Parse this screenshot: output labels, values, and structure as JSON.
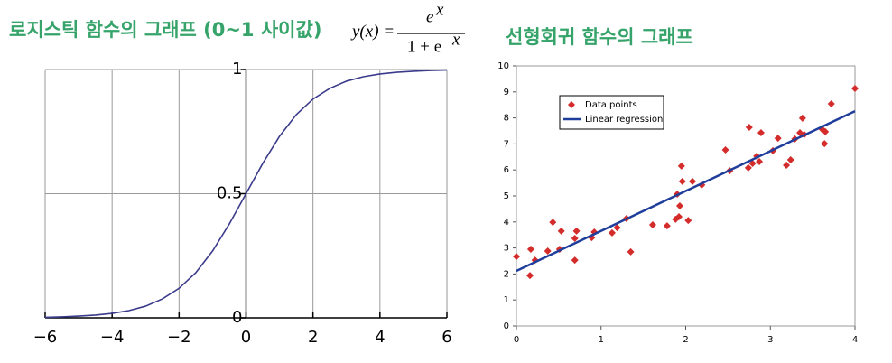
{
  "chart_data": [
    {
      "type": "line",
      "title": "로지스틱 함수의 그래프 (0~1 사이값)",
      "formula": {
        "lhs": "y(x) =",
        "numerator": "e",
        "numerator_exp": "x",
        "denominator": "1 + e",
        "denominator_exp": "x"
      },
      "x": [
        -6,
        -5.5,
        -5,
        -4.5,
        -4,
        -3.5,
        -3,
        -2.5,
        -2,
        -1.5,
        -1,
        -0.5,
        0,
        0.5,
        1,
        1.5,
        2,
        2.5,
        3,
        3.5,
        4,
        4.5,
        5,
        5.5,
        6
      ],
      "values": [
        0.002,
        0.004,
        0.007,
        0.011,
        0.018,
        0.029,
        0.047,
        0.076,
        0.119,
        0.182,
        0.269,
        0.378,
        0.5,
        0.622,
        0.731,
        0.818,
        0.881,
        0.924,
        0.953,
        0.971,
        0.982,
        0.989,
        0.993,
        0.996,
        0.998
      ],
      "color": "#3b3b8c",
      "xlim": [
        -6,
        6
      ],
      "ylim": [
        0,
        1
      ],
      "xticks": [
        {
          "value": -6,
          "label": "−6"
        },
        {
          "value": -4,
          "label": "−4"
        },
        {
          "value": -2,
          "label": "−2"
        },
        0,
        2,
        4,
        6
      ],
      "yticks": [
        0,
        0.5,
        1
      ],
      "grid": true
    },
    {
      "type": "scatter",
      "title": "선형회귀 함수의 그래프",
      "series": [
        {
          "name": "Data points",
          "type": "scatter",
          "color": "#d42b2b",
          "x": [
            0,
            0.17,
            0.16,
            0.22,
            0.37,
            0.43,
            0.51,
            0.53,
            0.69,
            0.71,
            0.69,
            0.89,
            0.92,
            1.13,
            1.19,
            1.3,
            1.35,
            1.61,
            1.78,
            1.88,
            1.92,
            1.9,
            1.93,
            1.95,
            1.96,
            2.03,
            2.08,
            2.19,
            2.47,
            2.52,
            2.74,
            2.75,
            2.79,
            2.84,
            2.89,
            2.87,
            3.03,
            3.09,
            3.19,
            3.24,
            3.29,
            3.35,
            3.38,
            3.4,
            3.61,
            3.64,
            3.65,
            3.72,
            4
          ],
          "values": [
            2.67,
            2.95,
            1.94,
            2.53,
            2.88,
            3.99,
            2.95,
            3.65,
            3.37,
            3.65,
            2.53,
            3.4,
            3.61,
            3.58,
            3.78,
            4.13,
            2.85,
            3.89,
            3.85,
            4.1,
            4.2,
            5.07,
            4.62,
            6.15,
            5.56,
            4.06,
            5.56,
            5.42,
            6.77,
            5.97,
            6.08,
            7.64,
            6.25,
            6.53,
            7.43,
            6.32,
            6.74,
            7.22,
            6.18,
            6.39,
            7.19,
            7.43,
            7.99,
            7.36,
            7.57,
            7.01,
            7.47,
            8.54,
            9.13
          ]
        },
        {
          "name": "Linear regression",
          "type": "line",
          "color": "#1f3e9c",
          "x": [
            0,
            4
          ],
          "values": [
            2.12,
            8.26
          ]
        }
      ],
      "xlim": [
        0,
        4
      ],
      "ylim": [
        0,
        10
      ],
      "xticks": [
        0,
        1,
        2,
        3,
        4
      ],
      "yticks": [
        0,
        1,
        2,
        3,
        4,
        5,
        6,
        7,
        8,
        9,
        10
      ],
      "grid": false,
      "legend": "upper left"
    }
  ]
}
